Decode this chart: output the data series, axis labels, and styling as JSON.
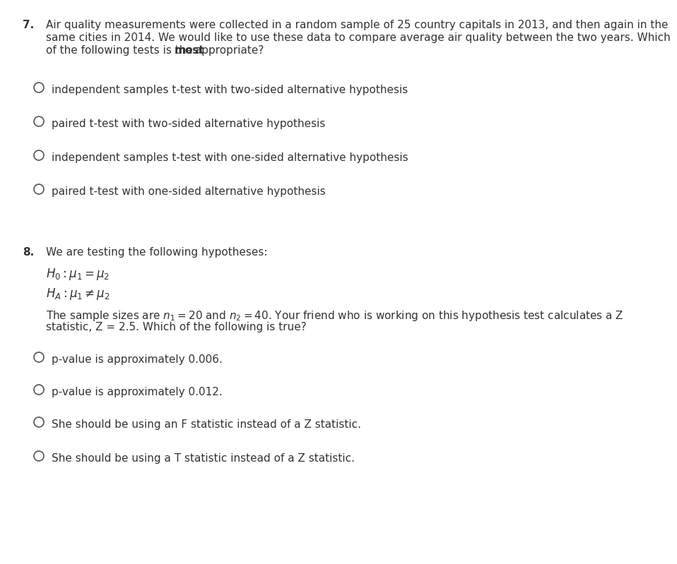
{
  "bg_color": "#ffffff",
  "text_color": "#333333",
  "circle_color": "#555555",
  "font_size_body": 11.0,
  "font_size_math": 12.0,
  "font_size_number": 11.0,
  "q7_number": "7.",
  "q7_line1": "Air quality measurements were collected in a random sample of 25 country capitals in 2013, and then again in the",
  "q7_line2": "same cities in 2014. We would like to use these data to compare average air quality between the two years. Which",
  "q7_line3_pre": "of the following tests is the ",
  "q7_line3_bold": "most",
  "q7_line3_post": " appropriate?",
  "q7_options": [
    "independent samples t-test with two-sided alternative hypothesis",
    "paired t-test with two-sided alternative hypothesis",
    "independent samples t-test with one-sided alternative hypothesis",
    "paired t-test with one-sided alternative hypothesis"
  ],
  "q8_number": "8.",
  "q8_intro": "We are testing the following hypotheses:",
  "q8_options": [
    "p-value is approximately 0.006.",
    "p-value is approximately 0.012.",
    "She should be using an F statistic instead of a Z statistic.",
    "She should be using a T statistic instead of a Z statistic."
  ]
}
